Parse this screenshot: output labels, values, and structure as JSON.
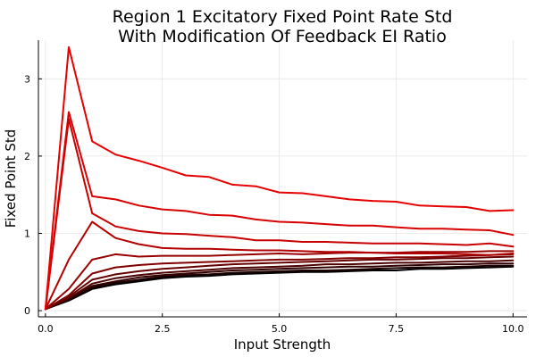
{
  "chart_data": {
    "type": "line",
    "title_lines": [
      "Region 1 Excitatory Fixed Point Rate Std",
      "With Modification Of Feedback EI Ratio"
    ],
    "xlabel": "Input Strength",
    "ylabel": "Fixed Point Std",
    "xlim": [
      -0.15,
      10.3
    ],
    "ylim": [
      -0.08,
      3.5
    ],
    "xticks": [
      0.0,
      2.5,
      5.0,
      7.5,
      10.0
    ],
    "xtick_labels": [
      "0.0",
      "2.5",
      "5.0",
      "7.5",
      "10.0"
    ],
    "yticks": [
      0,
      1,
      2,
      3
    ],
    "ytick_labels": [
      "0",
      "1",
      "2",
      "3"
    ],
    "grid": true,
    "legend": "none",
    "x": [
      0,
      0.5,
      1,
      1.5,
      2,
      2.5,
      3,
      3.5,
      4,
      4.5,
      5,
      5.5,
      6,
      6.5,
      7,
      7.5,
      8,
      8.5,
      9,
      9.5,
      10
    ],
    "series": [
      {
        "color": "#000000",
        "values": [
          0.02,
          0.13,
          0.28,
          0.34,
          0.38,
          0.42,
          0.44,
          0.45,
          0.47,
          0.48,
          0.49,
          0.5,
          0.5,
          0.51,
          0.52,
          0.52,
          0.54,
          0.54,
          0.55,
          0.56,
          0.57
        ]
      },
      {
        "color": "#1a0000",
        "values": [
          0.02,
          0.14,
          0.3,
          0.36,
          0.4,
          0.44,
          0.46,
          0.47,
          0.49,
          0.5,
          0.51,
          0.52,
          0.52,
          0.53,
          0.54,
          0.55,
          0.56,
          0.56,
          0.57,
          0.58,
          0.58
        ]
      },
      {
        "color": "#330000",
        "values": [
          0.02,
          0.15,
          0.32,
          0.38,
          0.43,
          0.46,
          0.48,
          0.5,
          0.52,
          0.53,
          0.54,
          0.55,
          0.56,
          0.57,
          0.57,
          0.58,
          0.59,
          0.6,
          0.6,
          0.61,
          0.61
        ]
      },
      {
        "color": "#4d0000",
        "values": [
          0.02,
          0.16,
          0.35,
          0.42,
          0.46,
          0.49,
          0.51,
          0.53,
          0.55,
          0.56,
          0.57,
          0.58,
          0.6,
          0.6,
          0.61,
          0.62,
          0.62,
          0.63,
          0.64,
          0.64,
          0.65
        ]
      },
      {
        "color": "#660000",
        "values": [
          0.02,
          0.18,
          0.4,
          0.47,
          0.51,
          0.54,
          0.56,
          0.58,
          0.6,
          0.61,
          0.62,
          0.63,
          0.64,
          0.65,
          0.66,
          0.66,
          0.67,
          0.68,
          0.68,
          0.69,
          0.7
        ]
      },
      {
        "color": "#800000",
        "values": [
          0.02,
          0.2,
          0.48,
          0.56,
          0.59,
          0.61,
          0.62,
          0.63,
          0.64,
          0.65,
          0.66,
          0.66,
          0.67,
          0.68,
          0.68,
          0.69,
          0.69,
          0.7,
          0.71,
          0.72,
          0.73
        ]
      },
      {
        "color": "#990000",
        "values": [
          0.02,
          0.28,
          0.66,
          0.73,
          0.7,
          0.71,
          0.71,
          0.71,
          0.72,
          0.73,
          0.74,
          0.73,
          0.74,
          0.75,
          0.75,
          0.75,
          0.76,
          0.76,
          0.76,
          0.77,
          0.77
        ]
      },
      {
        "color": "#b30000",
        "values": [
          0.02,
          0.66,
          1.15,
          0.94,
          0.86,
          0.81,
          0.8,
          0.8,
          0.79,
          0.78,
          0.78,
          0.77,
          0.76,
          0.76,
          0.75,
          0.74,
          0.74,
          0.74,
          0.73,
          0.72,
          0.74
        ]
      },
      {
        "color": "#c80000",
        "values": [
          0.02,
          2.48,
          1.26,
          1.09,
          1.03,
          1.0,
          0.99,
          0.97,
          0.95,
          0.91,
          0.91,
          0.89,
          0.89,
          0.88,
          0.87,
          0.87,
          0.87,
          0.86,
          0.85,
          0.87,
          0.83
        ]
      },
      {
        "color": "#d80000",
        "values": [
          0.02,
          2.57,
          1.48,
          1.44,
          1.36,
          1.31,
          1.29,
          1.24,
          1.23,
          1.18,
          1.15,
          1.14,
          1.12,
          1.1,
          1.1,
          1.08,
          1.06,
          1.06,
          1.05,
          1.04,
          0.98
        ]
      },
      {
        "color": "#e60000",
        "values": [
          0.02,
          3.41,
          2.19,
          2.02,
          1.94,
          1.85,
          1.75,
          1.73,
          1.63,
          1.61,
          1.53,
          1.52,
          1.48,
          1.44,
          1.42,
          1.41,
          1.36,
          1.35,
          1.34,
          1.29,
          1.3
        ]
      }
    ]
  }
}
